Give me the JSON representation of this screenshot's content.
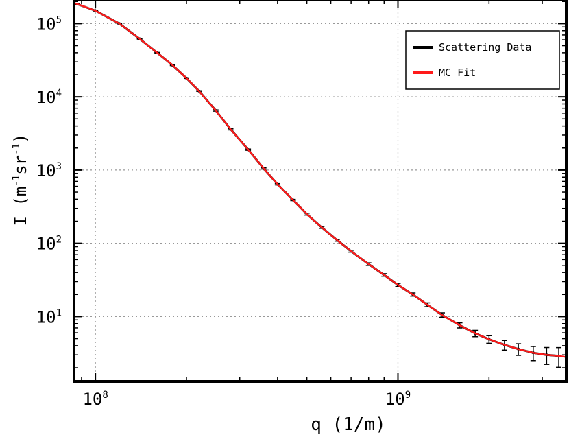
{
  "chart_data": {
    "type": "line",
    "xlabel": "q (1/m)",
    "ylabel": "I (m^-1 sr^-1)",
    "ylabel_parts": {
      "pre": "I (m",
      "sup1": "-1",
      "mid": "sr",
      "sup2": "-1",
      "post": ")"
    },
    "x_scale": "log",
    "y_scale": "log",
    "xlim": [
      85000000.0,
      3600000000.0
    ],
    "ylim": [
      1.3,
      210000.0
    ],
    "grid": true,
    "legend_position": "top-right",
    "x_ticks": [
      {
        "value": 100000000.0,
        "base": "10",
        "exp": "8"
      },
      {
        "value": 1000000000.0,
        "base": "10",
        "exp": "9"
      }
    ],
    "y_ticks": [
      {
        "value": 10,
        "base": "10",
        "exp": "1"
      },
      {
        "value": 100,
        "base": "10",
        "exp": "2"
      },
      {
        "value": 1000,
        "base": "10",
        "exp": "3"
      },
      {
        "value": 10000,
        "base": "10",
        "exp": "4"
      },
      {
        "value": 100000,
        "base": "10",
        "exp": "5"
      }
    ],
    "series": [
      {
        "name": "Scattering Data",
        "color": "#000000",
        "style": "points-with-errorbars",
        "x": [
          87000000.0,
          100000000.0,
          120000000.0,
          140000000.0,
          160000000.0,
          180000000.0,
          200000000.0,
          220000000.0,
          250000000.0,
          280000000.0,
          320000000.0,
          360000000.0,
          400000000.0,
          450000000.0,
          500000000.0,
          560000000.0,
          630000000.0,
          700000000.0,
          800000000.0,
          900000000.0,
          1000000000.0,
          1120000000.0,
          1250000000.0,
          1400000000.0,
          1600000000.0,
          1800000000.0,
          2000000000.0,
          2250000000.0,
          2500000000.0,
          2800000000.0,
          3100000000.0,
          3400000000.0
        ],
        "y": [
          185000,
          150000,
          100000,
          62000,
          40000,
          27000,
          18000,
          12000,
          6500,
          3600,
          1900,
          1050,
          640,
          390,
          250,
          165,
          110,
          78,
          52,
          37,
          27,
          20,
          14.5,
          10.5,
          7.6,
          5.9,
          4.9,
          4.1,
          3.6,
          3.2,
          3.0,
          2.9
        ],
        "rel_error": [
          0.01,
          0.01,
          0.01,
          0.01,
          0.01,
          0.01,
          0.01,
          0.01,
          0.02,
          0.02,
          0.02,
          0.02,
          0.02,
          0.02,
          0.03,
          0.03,
          0.03,
          0.03,
          0.04,
          0.04,
          0.05,
          0.05,
          0.06,
          0.07,
          0.08,
          0.1,
          0.12,
          0.15,
          0.18,
          0.22,
          0.26,
          0.3
        ]
      },
      {
        "name": "MC Fit",
        "color": "#ff1a1a",
        "style": "line",
        "x": [
          85000000.0,
          100000000.0,
          120000000.0,
          140000000.0,
          160000000.0,
          180000000.0,
          200000000.0,
          220000000.0,
          250000000.0,
          280000000.0,
          320000000.0,
          360000000.0,
          400000000.0,
          450000000.0,
          500000000.0,
          560000000.0,
          630000000.0,
          700000000.0,
          800000000.0,
          900000000.0,
          1000000000.0,
          1120000000.0,
          1250000000.0,
          1400000000.0,
          1600000000.0,
          1800000000.0,
          2000000000.0,
          2250000000.0,
          2500000000.0,
          2800000000.0,
          3100000000.0,
          3400000000.0,
          3600000000.0
        ],
        "y": [
          192000,
          150000,
          100000,
          62000,
          40000,
          27000,
          18000,
          12000,
          6500,
          3600,
          1900,
          1050,
          640,
          390,
          250,
          165,
          110,
          78,
          52,
          37,
          27,
          20,
          14.5,
          10.5,
          7.6,
          5.9,
          4.9,
          4.1,
          3.6,
          3.2,
          3.0,
          2.9,
          2.8
        ]
      }
    ],
    "legend": [
      {
        "label": "Scattering Data",
        "color": "#000000"
      },
      {
        "label": "MC Fit",
        "color": "#ff1a1a"
      }
    ]
  }
}
